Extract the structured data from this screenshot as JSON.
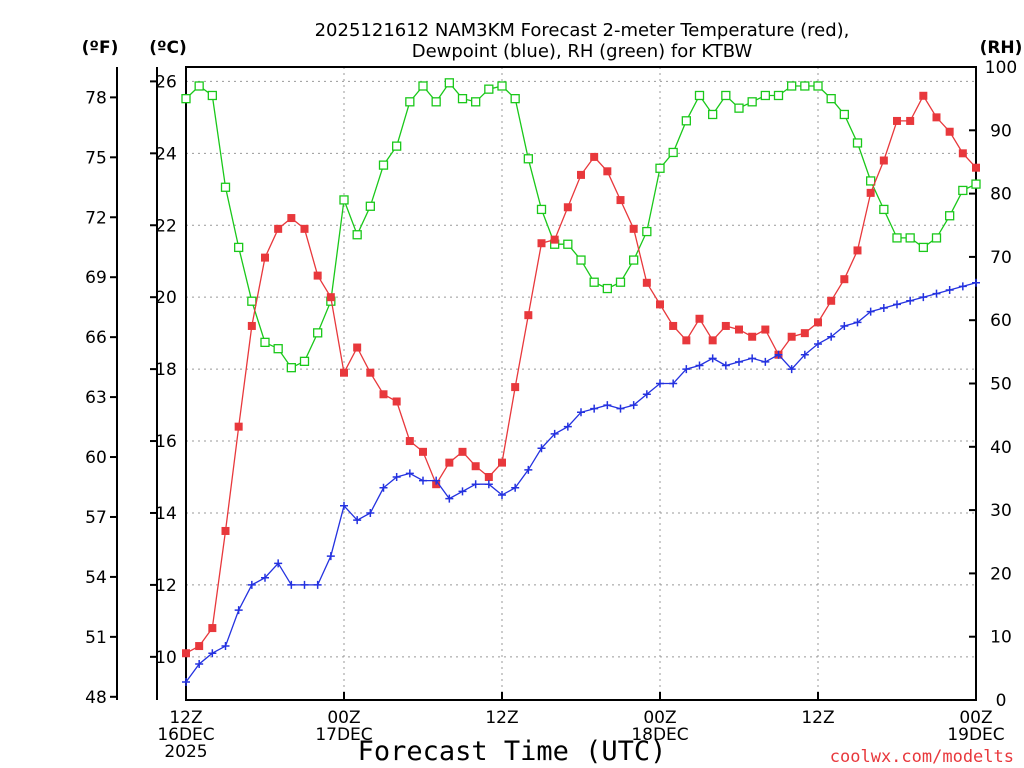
{
  "title_line1": "2025121612 NAM3KM Forecast 2-meter Temperature (red),",
  "title_line2": "Dewpoint (blue), RH (green) for KTBW",
  "xlabel": "Forecast Time (UTC)",
  "credit": "coolwx.com/modelts",
  "units": {
    "fahrenheit": "(ºF)",
    "celsius": "(ºC)",
    "rh": "(RH)"
  },
  "colors": {
    "temperature": "#e8383c",
    "dewpoint": "#2432e0",
    "rh": "#1ac81a",
    "credit": "#e8383c"
  },
  "chart_data": {
    "type": "line",
    "title": "2025121612 NAM3KM Forecast 2-meter Temperature (red), Dewpoint (blue), RH (green) for KTBW",
    "xlabel": "Forecast Time (UTC)",
    "x_unit": "forecast hour",
    "x": [
      0,
      1,
      2,
      3,
      4,
      5,
      6,
      7,
      8,
      9,
      10,
      11,
      12,
      13,
      14,
      15,
      16,
      17,
      18,
      19,
      20,
      21,
      22,
      23,
      24,
      25,
      26,
      27,
      28,
      29,
      30,
      31,
      32,
      33,
      34,
      35,
      36,
      37,
      38,
      39,
      40,
      41,
      42,
      43,
      44,
      45,
      46,
      47,
      48,
      49,
      50,
      51,
      52,
      53,
      54,
      55,
      56,
      57,
      58,
      59,
      60
    ],
    "xlim": [
      0,
      60
    ],
    "x_ticks": [
      {
        "hour": 0,
        "lines": [
          "12Z",
          "16DEC",
          "2025"
        ]
      },
      {
        "hour": 12,
        "lines": [
          "00Z",
          "17DEC"
        ]
      },
      {
        "hour": 24,
        "lines": [
          "12Z"
        ]
      },
      {
        "hour": 36,
        "lines": [
          "00Z",
          "18DEC"
        ]
      },
      {
        "hour": 48,
        "lines": [
          "12Z"
        ]
      },
      {
        "hour": 60,
        "lines": [
          "00Z",
          "19DEC"
        ]
      }
    ],
    "left_axis_celsius": {
      "label": "(ºC)",
      "ylim": [
        8.8,
        26.4
      ],
      "ticks": [
        10,
        12,
        14,
        16,
        18,
        20,
        22,
        24,
        26
      ]
    },
    "left_axis_fahrenheit": {
      "label": "(ºF)",
      "ylim": [
        47.84,
        79.52
      ],
      "ticks": [
        48,
        51,
        54,
        57,
        60,
        63,
        66,
        69,
        72,
        75,
        78
      ]
    },
    "right_axis_rh": {
      "label": "(RH)",
      "ylim": [
        0,
        100
      ],
      "ticks": [
        0,
        10,
        20,
        30,
        40,
        50,
        60,
        70,
        80,
        90,
        100
      ]
    },
    "series": [
      {
        "name": "Temperature",
        "axis": "celsius",
        "color": "#e8383c",
        "marker": "filled-square",
        "values": [
          10.1,
          10.3,
          10.8,
          13.5,
          16.4,
          19.2,
          21.1,
          21.9,
          22.2,
          21.9,
          20.6,
          20.0,
          17.9,
          18.6,
          17.9,
          17.3,
          17.1,
          16.0,
          15.7,
          14.8,
          15.4,
          15.7,
          15.3,
          15.0,
          15.4,
          17.5,
          19.5,
          21.5,
          21.6,
          22.5,
          23.4,
          23.9,
          23.5,
          22.7,
          21.9,
          20.4,
          19.8,
          19.2,
          18.8,
          19.4,
          18.8,
          19.2,
          19.1,
          18.9,
          19.1,
          18.4,
          18.9,
          19.0,
          19.3,
          19.9,
          20.5,
          21.3,
          22.9,
          23.8,
          24.9,
          24.9,
          25.6,
          25.0,
          24.6,
          24.0,
          23.6
        ]
      },
      {
        "name": "Dewpoint",
        "axis": "celsius",
        "color": "#2432e0",
        "marker": "plus",
        "values": [
          9.3,
          9.8,
          10.1,
          10.3,
          11.3,
          12.0,
          12.2,
          12.6,
          12.0,
          12.0,
          12.0,
          12.8,
          14.2,
          13.8,
          14.0,
          14.7,
          15.0,
          15.1,
          14.9,
          14.9,
          14.4,
          14.6,
          14.8,
          14.8,
          14.5,
          14.7,
          15.2,
          15.8,
          16.2,
          16.4,
          16.8,
          16.9,
          17.0,
          16.9,
          17.0,
          17.3,
          17.6,
          17.6,
          18.0,
          18.1,
          18.3,
          18.1,
          18.2,
          18.3,
          18.2,
          18.4,
          18.0,
          18.4,
          18.7,
          18.9,
          19.2,
          19.3,
          19.6,
          19.7,
          19.8,
          19.9,
          20.0,
          20.1,
          20.2,
          20.3,
          20.4
        ]
      },
      {
        "name": "RH",
        "axis": "rh",
        "color": "#1ac81a",
        "marker": "open-square",
        "values": [
          95,
          97,
          95.5,
          81,
          71.5,
          63,
          56.5,
          55.5,
          52.5,
          53.5,
          58,
          63,
          79,
          73.5,
          78,
          84.5,
          87.5,
          94.5,
          97,
          94.5,
          97.5,
          95,
          94.5,
          96.5,
          97,
          95,
          85.5,
          77.5,
          72,
          72,
          69.5,
          66,
          65,
          66,
          69.5,
          74,
          84,
          86.5,
          91.5,
          95.5,
          92.5,
          95.5,
          93.5,
          94.5,
          95.5,
          95.5,
          97,
          97,
          97,
          95,
          92.5,
          88,
          82,
          77.5,
          73,
          73,
          71.5,
          73,
          76.5,
          80.5,
          81.5
        ]
      }
    ]
  }
}
